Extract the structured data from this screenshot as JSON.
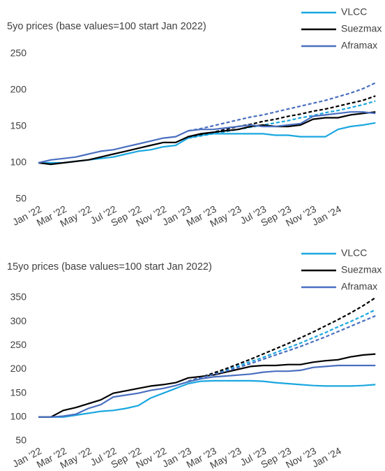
{
  "chart_data": [
    {
      "type": "line",
      "title": "5yo prices (base values=100 start Jan 2022)",
      "categories": [
        "Jan '22",
        null,
        "Mar '22",
        null,
        "May '22",
        null,
        "Jul '22",
        null,
        "Sep '22",
        null,
        "Nov '22",
        null,
        "Jan '23",
        null,
        "Mar '23",
        null,
        "May '23",
        null,
        "Jul '23",
        null,
        "Sep '23",
        null,
        "Nov '23",
        null,
        "Jan '24",
        null,
        null,
        null
      ],
      "ylim": [
        50,
        250
      ],
      "yticks": [
        50,
        100,
        150,
        200,
        250
      ],
      "grid": false,
      "series": [
        {
          "name": "VLCC",
          "color": "#1aa7e0",
          "values": [
            100,
            100,
            100,
            102,
            104,
            106,
            108,
            112,
            116,
            118,
            122,
            124,
            134,
            138,
            140,
            140,
            140,
            140,
            140,
            138,
            138,
            136,
            136,
            136,
            146,
            150,
            152,
            155
          ],
          "forecast": [
            null,
            null,
            null,
            null,
            null,
            null,
            null,
            null,
            null,
            null,
            null,
            null,
            134,
            137,
            140,
            143,
            146,
            149,
            152,
            155,
            158,
            162,
            165,
            169,
            172,
            176,
            180,
            185
          ]
        },
        {
          "name": "Suezmax",
          "color": "#000000",
          "values": [
            100,
            98,
            100,
            102,
            104,
            108,
            112,
            116,
            120,
            124,
            128,
            128,
            136,
            140,
            142,
            144,
            146,
            150,
            152,
            150,
            150,
            152,
            160,
            162,
            162,
            166,
            168,
            170
          ],
          "forecast": [
            null,
            null,
            null,
            null,
            null,
            null,
            null,
            null,
            null,
            null,
            null,
            null,
            136,
            139,
            142,
            146,
            150,
            153,
            157,
            160,
            164,
            167,
            171,
            174,
            178,
            182,
            186,
            192
          ]
        },
        {
          "name": "Aframax",
          "color": "#4a6fc0",
          "values": [
            100,
            104,
            106,
            108,
            112,
            116,
            118,
            122,
            126,
            130,
            134,
            136,
            144,
            146,
            146,
            148,
            150,
            152,
            150,
            150,
            152,
            154,
            164,
            166,
            168,
            170,
            170,
            168
          ],
          "forecast": [
            null,
            null,
            null,
            null,
            null,
            null,
            null,
            null,
            null,
            null,
            null,
            null,
            144,
            147,
            151,
            155,
            159,
            163,
            166,
            170,
            174,
            178,
            182,
            186,
            191,
            196,
            202,
            210
          ]
        }
      ]
    },
    {
      "type": "line",
      "title": "15yo prices (base values=100 start Jan 2022)",
      "categories": [
        "Jan '22",
        null,
        "Mar '22",
        null,
        "May '22",
        null,
        "Jul '22",
        null,
        "Sep '22",
        null,
        "Nov '22",
        null,
        "Jan '23",
        null,
        "Mar '23",
        null,
        "May '23",
        null,
        "Jul '23",
        null,
        "Sep '23",
        null,
        "Nov '23",
        null,
        "Jan '24",
        null,
        null,
        null
      ],
      "ylim": [
        50,
        350
      ],
      "yticks": [
        50,
        100,
        150,
        200,
        250,
        300,
        350
      ],
      "grid": false,
      "series": [
        {
          "name": "VLCC",
          "color": "#1aa7e0",
          "values": [
            100,
            100,
            100,
            104,
            108,
            112,
            114,
            118,
            124,
            140,
            150,
            160,
            170,
            175,
            176,
            176,
            176,
            176,
            175,
            172,
            170,
            168,
            166,
            165,
            165,
            165,
            166,
            168
          ],
          "forecast": [
            null,
            null,
            null,
            null,
            null,
            null,
            null,
            null,
            null,
            null,
            null,
            null,
            175,
            182,
            190,
            198,
            207,
            216,
            225,
            235,
            245,
            255,
            266,
            277,
            289,
            300,
            312,
            325
          ]
        },
        {
          "name": "Suezmax",
          "color": "#000000",
          "values": [
            100,
            100,
            114,
            120,
            128,
            136,
            150,
            155,
            160,
            165,
            168,
            172,
            182,
            185,
            188,
            194,
            200,
            206,
            208,
            208,
            210,
            210,
            215,
            218,
            220,
            226,
            230,
            232
          ],
          "forecast": [
            null,
            null,
            null,
            null,
            null,
            null,
            null,
            null,
            null,
            null,
            null,
            null,
            175,
            183,
            192,
            201,
            211,
            221,
            232,
            243,
            254,
            266,
            278,
            291,
            304,
            318,
            333,
            350
          ]
        },
        {
          "name": "Aframax",
          "color": "#4a6fc0",
          "values": [
            100,
            100,
            102,
            106,
            118,
            126,
            142,
            146,
            150,
            156,
            160,
            166,
            174,
            180,
            184,
            186,
            188,
            190,
            194,
            196,
            196,
            198,
            204,
            206,
            208,
            208,
            208,
            208
          ],
          "forecast": [
            null,
            null,
            null,
            null,
            null,
            null,
            null,
            null,
            null,
            null,
            null,
            null,
            175,
            182,
            189,
            196,
            204,
            212,
            221,
            230,
            239,
            248,
            258,
            268,
            279,
            290,
            301,
            312
          ]
        }
      ]
    }
  ]
}
